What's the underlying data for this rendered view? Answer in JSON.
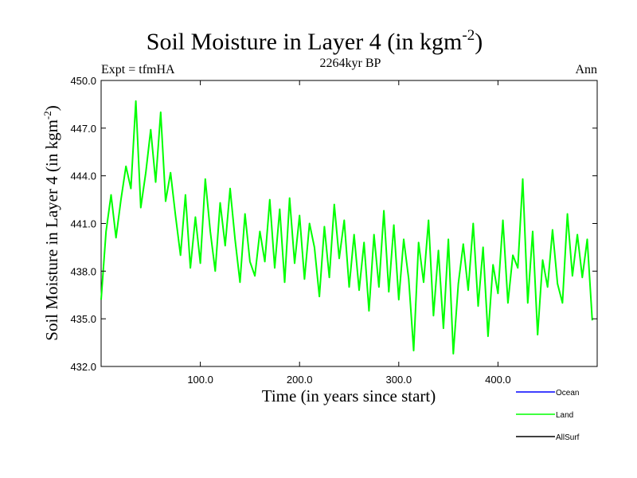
{
  "chart_data": {
    "type": "line",
    "title": "Soil Moisture in Layer 4 (in kgm",
    "title_superscript": "-2",
    "title_close": ")",
    "subtitle": "2264kyr BP",
    "left_label": "Expt = tfmHA",
    "right_label": "Ann",
    "xlabel": "Time (in years since start)",
    "ylabel": "Soil Moisture in Layer 4 (in kgm",
    "ylabel_superscript": "-2",
    "ylabel_close": ")",
    "xlim": [
      0,
      500
    ],
    "ylim": [
      432,
      450
    ],
    "x_ticks": [
      100,
      200,
      300,
      400
    ],
    "x_tick_labels": [
      "100.0",
      "200.0",
      "300.0",
      "400.0"
    ],
    "y_ticks": [
      432,
      435,
      438,
      441,
      444,
      447,
      450
    ],
    "y_tick_labels": [
      "432.0",
      "435.0",
      "438.0",
      "441.0",
      "444.0",
      "447.0",
      "450.0"
    ],
    "legend": [
      {
        "name": "Ocean",
        "color": "#0000ff"
      },
      {
        "name": "Land",
        "color": "#00ff00"
      },
      {
        "name": "AllSurf",
        "color": "#000000"
      }
    ],
    "series": [
      {
        "name": "Land",
        "color": "#00ff00",
        "x_start": 0,
        "x_step": 5,
        "values": [
          436.2,
          440.5,
          442.8,
          440.1,
          442.5,
          444.6,
          443.2,
          448.7,
          442.0,
          444.2,
          446.9,
          443.6,
          448.0,
          442.4,
          444.2,
          441.5,
          439.0,
          442.8,
          438.2,
          441.4,
          438.5,
          443.8,
          440.5,
          438.0,
          442.3,
          439.6,
          443.2,
          440.0,
          437.3,
          441.6,
          438.6,
          437.7,
          440.5,
          438.6,
          442.5,
          438.2,
          441.9,
          437.3,
          442.6,
          438.5,
          441.5,
          437.5,
          441.0,
          439.5,
          436.4,
          440.8,
          437.6,
          442.2,
          438.8,
          441.2,
          437.0,
          440.3,
          436.8,
          439.8,
          435.5,
          440.3,
          437.0,
          441.8,
          436.7,
          440.9,
          436.2,
          440.0,
          437.5,
          433.0,
          439.8,
          437.3,
          441.2,
          435.2,
          439.3,
          434.4,
          440.0,
          432.8,
          437.2,
          439.7,
          436.8,
          441.0,
          435.8,
          439.5,
          433.9,
          438.4,
          436.6,
          441.2,
          436.0,
          439.0,
          438.2,
          443.8,
          436.0,
          440.5,
          434.0,
          438.7,
          437.0,
          440.6,
          437.2,
          436.0,
          441.6,
          437.7,
          440.3,
          437.6,
          440.0,
          434.9
        ]
      }
    ]
  }
}
